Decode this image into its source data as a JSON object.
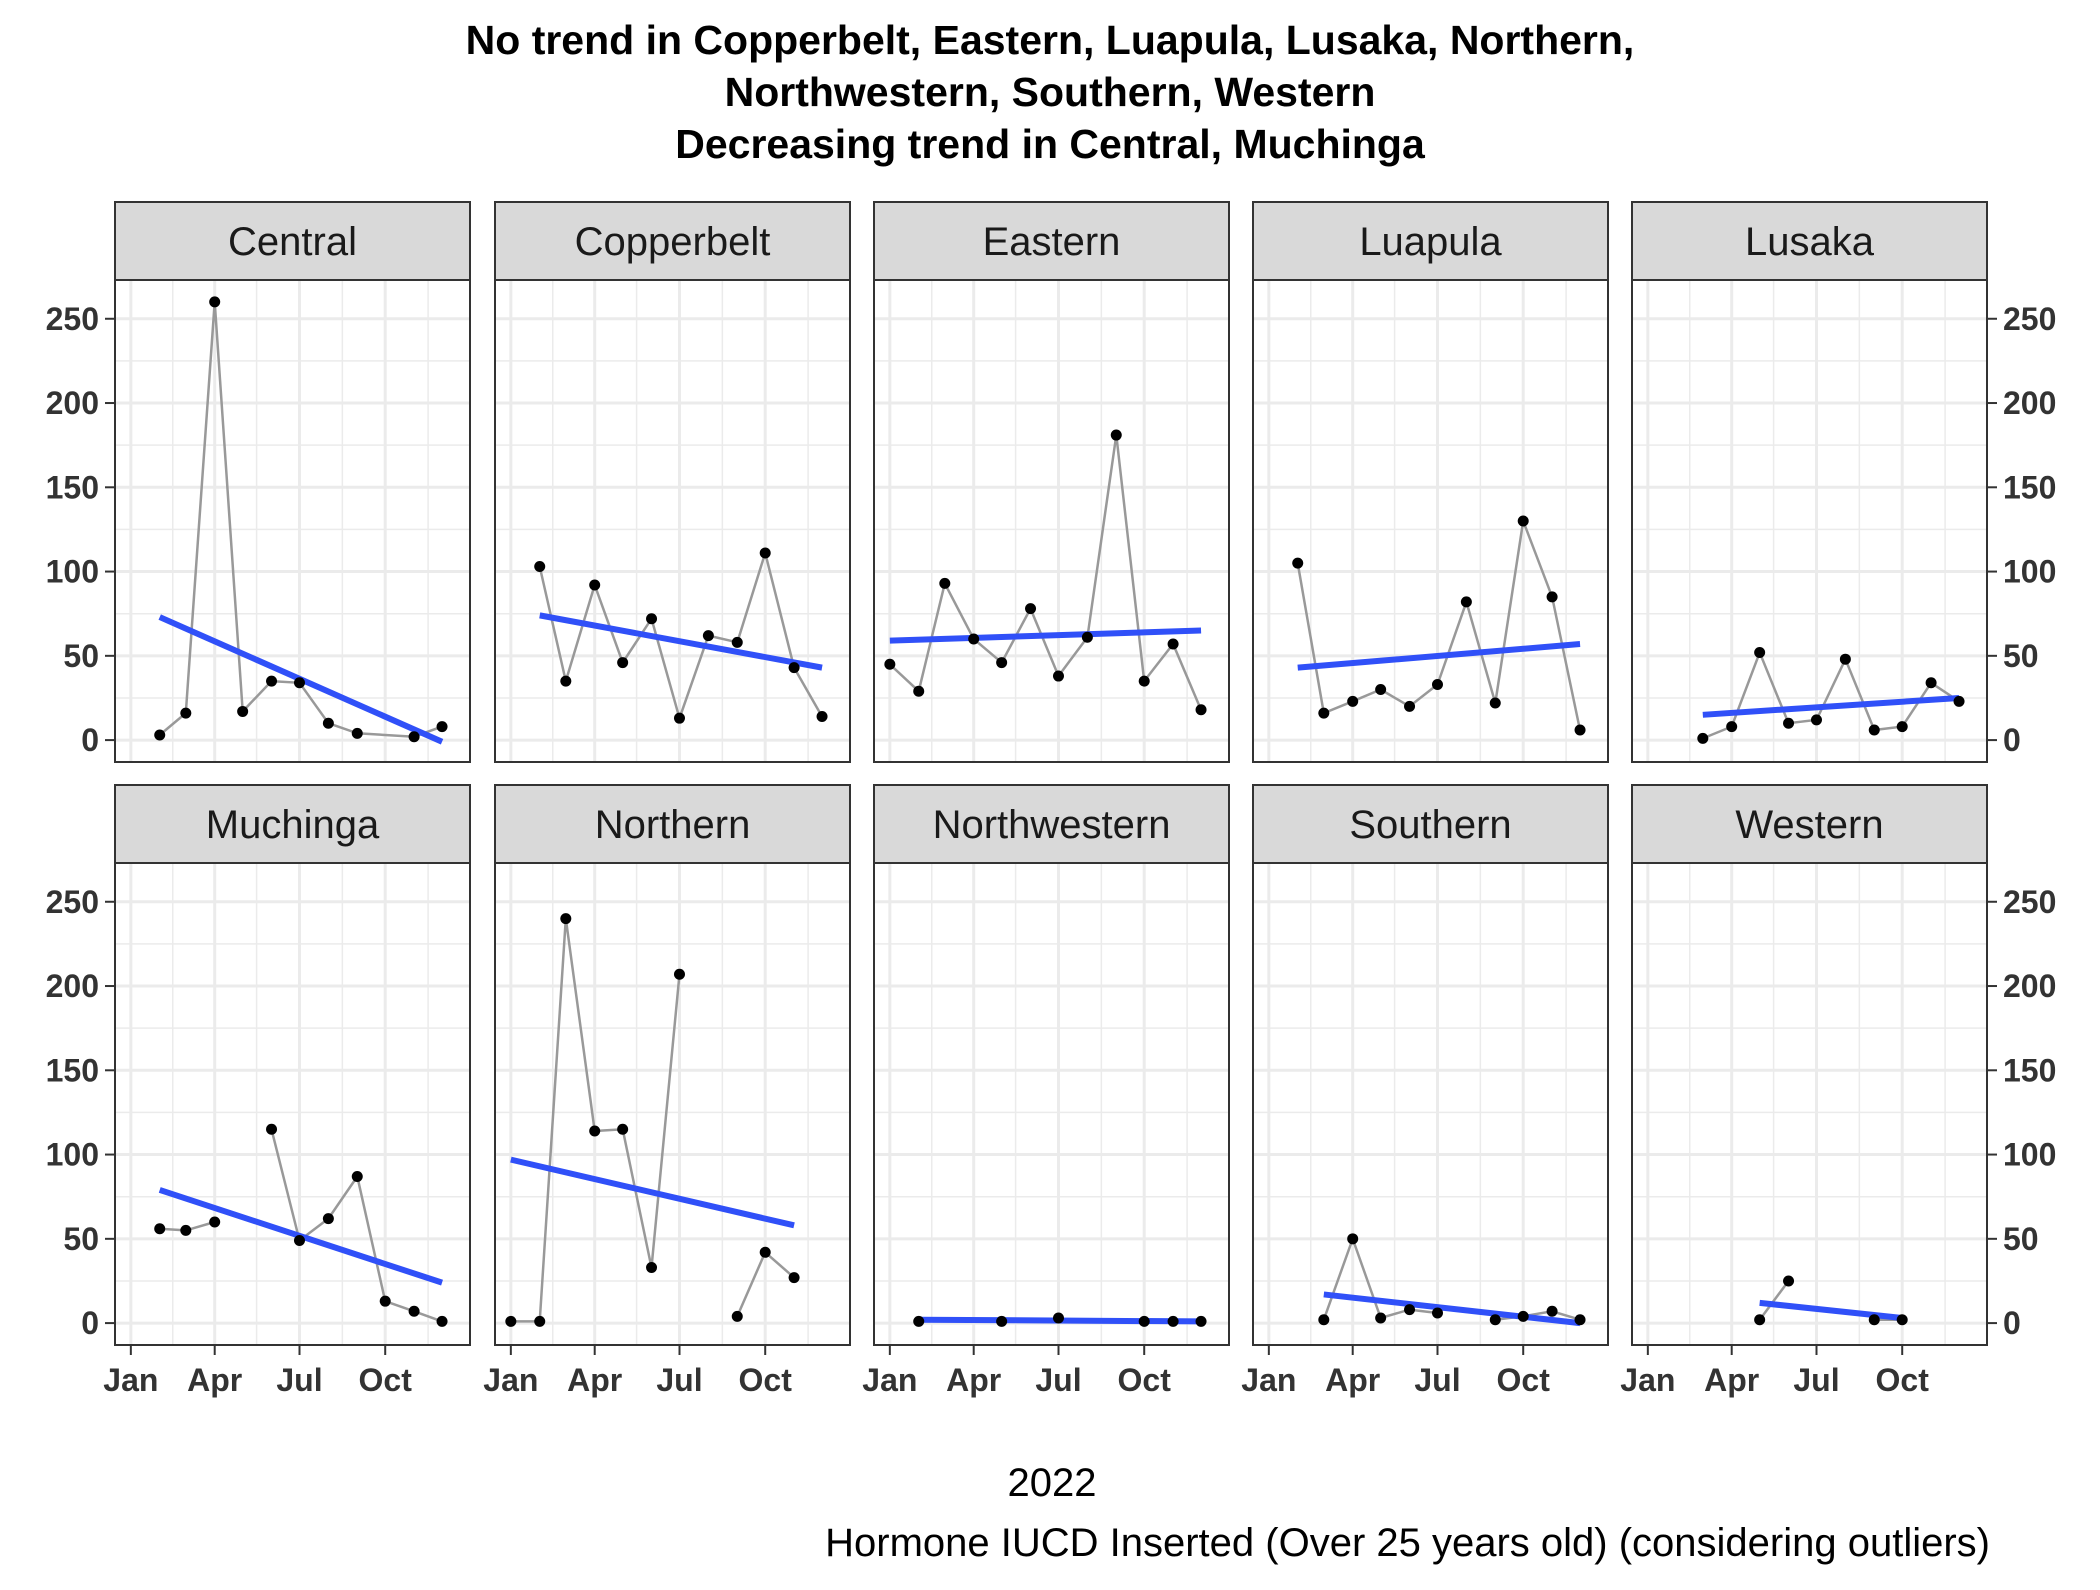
{
  "chart_data": {
    "type": "line",
    "title": [
      "No trend in Copperbelt, Eastern, Luapula, Lusaka, Northern,",
      "Northwestern, Southern, Western",
      "Decreasing trend in Central, Muchinga"
    ],
    "xlabel": "2022",
    "caption": "Hormone IUCD Inserted (Over 25 years old) (considering outliers)",
    "x_ticks": [
      "Jan",
      "Apr",
      "Jul",
      "Oct"
    ],
    "y_ticks": [
      0,
      50,
      100,
      150,
      200,
      250
    ],
    "xlim": [
      "2021-12-15",
      "2022-12-31"
    ],
    "ylim": [
      -13,
      273
    ],
    "grid": true,
    "colors": {
      "series_line": "#999999",
      "points": "#000000",
      "trend": "#3050f8",
      "strip_bg": "#d9d9d9",
      "grid": "#ebebeb"
    },
    "panels": [
      {
        "name": "Central",
        "points": [
          [
            "2022-02-01",
            3
          ],
          [
            "2022-03-01",
            16
          ],
          [
            "2022-04-01",
            260
          ],
          [
            "2022-05-01",
            17
          ],
          [
            "2022-06-01",
            35
          ],
          [
            "2022-07-01",
            34
          ],
          [
            "2022-08-01",
            10
          ],
          [
            "2022-09-01",
            4
          ],
          [
            "2022-11-01",
            2
          ],
          [
            "2022-12-01",
            8
          ]
        ],
        "trend": [
          [
            "2022-02-01",
            73
          ],
          [
            "2022-12-01",
            -1
          ]
        ]
      },
      {
        "name": "Copperbelt",
        "points": [
          [
            "2022-02-01",
            103
          ],
          [
            "2022-03-01",
            35
          ],
          [
            "2022-04-01",
            92
          ],
          [
            "2022-05-01",
            46
          ],
          [
            "2022-06-01",
            72
          ],
          [
            "2022-07-01",
            13
          ],
          [
            "2022-08-01",
            62
          ],
          [
            "2022-09-01",
            58
          ],
          [
            "2022-10-01",
            111
          ],
          [
            "2022-11-01",
            43
          ],
          [
            "2022-12-01",
            14
          ]
        ],
        "trend": [
          [
            "2022-02-01",
            74
          ],
          [
            "2022-12-01",
            43
          ]
        ]
      },
      {
        "name": "Eastern",
        "points": [
          [
            "2022-01-01",
            45
          ],
          [
            "2022-02-01",
            29
          ],
          [
            "2022-03-01",
            93
          ],
          [
            "2022-04-01",
            60
          ],
          [
            "2022-05-01",
            46
          ],
          [
            "2022-06-01",
            78
          ],
          [
            "2022-07-01",
            38
          ],
          [
            "2022-08-01",
            61
          ],
          [
            "2022-09-01",
            181
          ],
          [
            "2022-10-01",
            35
          ],
          [
            "2022-11-01",
            57
          ],
          [
            "2022-12-01",
            18
          ]
        ],
        "trend": [
          [
            "2022-01-01",
            59
          ],
          [
            "2022-12-01",
            65
          ]
        ]
      },
      {
        "name": "Luapula",
        "points": [
          [
            "2022-02-01",
            105
          ],
          [
            "2022-03-01",
            16
          ],
          [
            "2022-04-01",
            23
          ],
          [
            "2022-05-01",
            30
          ],
          [
            "2022-06-01",
            20
          ],
          [
            "2022-07-01",
            33
          ],
          [
            "2022-08-01",
            82
          ],
          [
            "2022-09-01",
            22
          ],
          [
            "2022-10-01",
            130
          ],
          [
            "2022-11-01",
            85
          ],
          [
            "2022-12-01",
            6
          ]
        ],
        "trend": [
          [
            "2022-02-01",
            43
          ],
          [
            "2022-12-01",
            57
          ]
        ]
      },
      {
        "name": "Lusaka",
        "points": [
          [
            "2022-03-01",
            1
          ],
          [
            "2022-04-01",
            8
          ],
          [
            "2022-05-01",
            52
          ],
          [
            "2022-06-01",
            10
          ],
          [
            "2022-07-01",
            12
          ],
          [
            "2022-08-01",
            48
          ],
          [
            "2022-09-01",
            6
          ],
          [
            "2022-10-01",
            8
          ],
          [
            "2022-11-01",
            34
          ],
          [
            "2022-12-01",
            23
          ]
        ],
        "trend": [
          [
            "2022-03-01",
            15
          ],
          [
            "2022-12-01",
            25
          ]
        ]
      },
      {
        "name": "Muchinga",
        "points": [
          [
            "2022-02-01",
            56
          ],
          [
            "2022-03-01",
            55
          ],
          [
            "2022-04-01",
            60
          ],
          null,
          [
            "2022-06-01",
            115
          ],
          [
            "2022-07-01",
            49
          ],
          [
            "2022-08-01",
            62
          ],
          [
            "2022-09-01",
            87
          ],
          [
            "2022-10-01",
            13
          ],
          [
            "2022-11-01",
            7
          ],
          [
            "2022-12-01",
            1
          ]
        ],
        "trend": [
          [
            "2022-02-01",
            79
          ],
          [
            "2022-12-01",
            24
          ]
        ]
      },
      {
        "name": "Northern",
        "points": [
          [
            "2022-01-01",
            1
          ],
          [
            "2022-02-01",
            1
          ],
          [
            "2022-03-01",
            240
          ],
          [
            "2022-04-01",
            114
          ],
          [
            "2022-05-01",
            115
          ],
          [
            "2022-06-01",
            33
          ],
          [
            "2022-07-01",
            207
          ],
          null,
          [
            "2022-09-01",
            4
          ],
          [
            "2022-10-01",
            42
          ],
          [
            "2022-11-01",
            27
          ]
        ],
        "trend": [
          [
            "2022-01-01",
            97
          ],
          [
            "2022-11-01",
            58
          ]
        ]
      },
      {
        "name": "Northwestern",
        "points": [
          [
            "2022-02-01",
            1
          ],
          null,
          [
            "2022-05-01",
            1
          ],
          null,
          [
            "2022-07-01",
            3
          ],
          null,
          [
            "2022-10-01",
            1
          ],
          [
            "2022-11-01",
            1
          ],
          [
            "2022-12-01",
            1
          ]
        ],
        "trend": [
          [
            "2022-02-01",
            2
          ],
          [
            "2022-12-01",
            1
          ]
        ]
      },
      {
        "name": "Southern",
        "points": [
          [
            "2022-03-01",
            2
          ],
          [
            "2022-04-01",
            50
          ],
          [
            "2022-05-01",
            3
          ],
          [
            "2022-06-01",
            8
          ],
          [
            "2022-07-01",
            6
          ],
          null,
          [
            "2022-09-01",
            2
          ],
          [
            "2022-10-01",
            4
          ],
          [
            "2022-11-01",
            7
          ],
          [
            "2022-12-01",
            2
          ]
        ],
        "trend": [
          [
            "2022-03-01",
            17
          ],
          [
            "2022-12-01",
            0
          ]
        ]
      },
      {
        "name": "Western",
        "points": [
          [
            "2022-05-01",
            2
          ],
          [
            "2022-06-01",
            25
          ],
          null,
          [
            "2022-09-01",
            2
          ],
          [
            "2022-10-01",
            2
          ]
        ],
        "trend": [
          [
            "2022-05-01",
            12
          ],
          [
            "2022-10-01",
            3
          ]
        ]
      }
    ]
  }
}
